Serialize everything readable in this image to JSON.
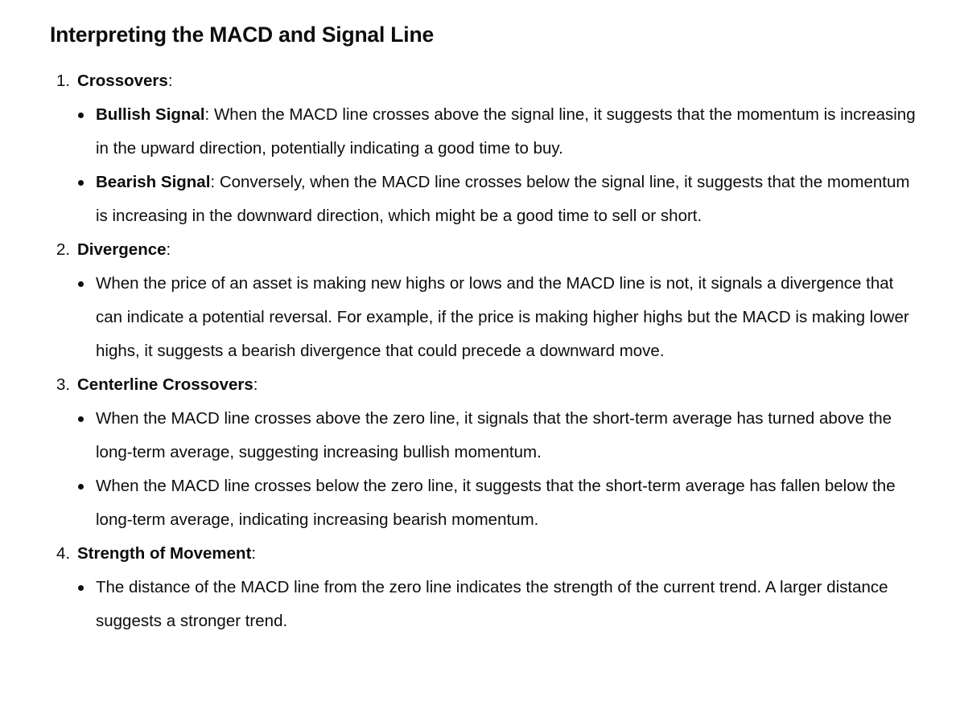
{
  "heading": "Interpreting the MACD and Signal Line",
  "sections": [
    {
      "num": "1.",
      "title": "Crossovers",
      "colon": ":",
      "points": [
        {
          "label": "Bullish Signal",
          "text": ": When the MACD line crosses above the signal line, it suggests that the momentum is increasing in the upward direction, potentially indicating a good time to buy."
        },
        {
          "label": "Bearish Signal",
          "text": ": Conversely, when the MACD line crosses below the signal line, it suggests that the momentum is increasing in the downward direction, which might be a good time to sell or short."
        }
      ]
    },
    {
      "num": "2.",
      "title": "Divergence",
      "colon": ":",
      "points": [
        {
          "label": "",
          "text": "When the price of an asset is making new highs or lows and the MACD line is not, it signals a divergence that can indicate a potential reversal. For example, if the price is making higher highs but the MACD is making lower highs, it suggests a bearish divergence that could precede a downward move."
        }
      ]
    },
    {
      "num": "3.",
      "title": "Centerline Crossovers",
      "colon": ":",
      "points": [
        {
          "label": "",
          "text": "When the MACD line crosses above the zero line, it signals that the short-term average has turned above the long-term average, suggesting increasing bullish momentum."
        },
        {
          "label": "",
          "text": "When the MACD line crosses below the zero line, it suggests that the short-term average has fallen below the long-term average, indicating increasing bearish momentum."
        }
      ]
    },
    {
      "num": "4.",
      "title": "Strength of Movement",
      "colon": ":",
      "points": [
        {
          "label": "",
          "text": "The distance of the MACD line from the zero line indicates the strength of the current trend. A larger distance suggests a stronger trend."
        }
      ]
    }
  ]
}
